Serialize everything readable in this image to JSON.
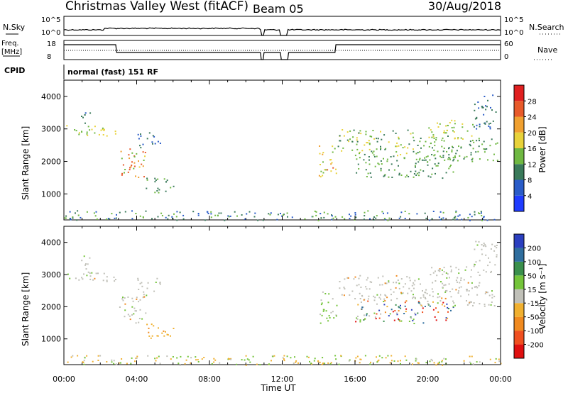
{
  "header": {
    "title": "Christmas Valley West (fitACF)",
    "beam": "Beam 05",
    "date": "30/Aug/2018"
  },
  "panels": {
    "nsky": {
      "label": "N.Sky",
      "y_top": "10^5",
      "y_bottom": "10^0",
      "right_top": "10^5",
      "right_bottom": "10^0",
      "right_label": "N.Search"
    },
    "freq": {
      "label_line1": "Freq.",
      "label_line2": "[MHz]",
      "y_top": "18",
      "y_bottom": "8",
      "right_top": "60",
      "right_bottom": "0",
      "right_label": "Nave"
    },
    "cpid": {
      "label": "CPID",
      "value": "normal (fast) 151 RF"
    }
  },
  "chart_data": [
    {
      "type": "heatmap",
      "name": "power",
      "ylabel": "Slant Range [km]",
      "yticks": [
        "1000",
        "2000",
        "3000",
        "4000"
      ],
      "ylim": [
        200,
        4500
      ],
      "xlim": [
        "00:00",
        "24:00"
      ],
      "colorbar": {
        "label": "Power [dB]",
        "ticks": [
          "4",
          "8",
          "12",
          "16",
          "20",
          "24",
          "28"
        ],
        "colors": [
          "#1f3cff",
          "#2a5cc8",
          "#3a7a5a",
          "#6fb842",
          "#e8d23a",
          "#f0a030",
          "#e85a2a",
          "#e02020"
        ]
      }
    },
    {
      "type": "heatmap",
      "name": "velocity",
      "ylabel": "Slant Range [km]",
      "yticks": [
        "1000",
        "2000",
        "3000",
        "4000"
      ],
      "ylim": [
        200,
        4500
      ],
      "xlim": [
        "00:00",
        "24:00"
      ],
      "xlabel": "Time UT",
      "xticks": [
        "00:00",
        "04:00",
        "08:00",
        "12:00",
        "16:00",
        "20:00",
        "00:00"
      ],
      "colorbar": {
        "label": "Velocity [m s⁻¹]",
        "ticks": [
          "200",
          "100",
          "50",
          "15",
          "-15",
          "-50",
          "-100",
          "-200"
        ],
        "colors": [
          "#2b3fbf",
          "#2f6e9e",
          "#3a8f4c",
          "#74c43a",
          "#c0c0b8",
          "#f0b030",
          "#f08a20",
          "#f05020",
          "#e01010"
        ]
      }
    }
  ],
  "scatter_regions": [
    {
      "t0": 0.0,
      "t1": 2.9,
      "r0": 2800,
      "r1": 3150,
      "pow": [
        12,
        20
      ],
      "vel": "gray"
    },
    {
      "t0": 0.9,
      "t1": 1.5,
      "r0": 3150,
      "r1": 3600,
      "pow": [
        6,
        12
      ],
      "vel": "gray"
    },
    {
      "t0": 3.0,
      "t1": 4.5,
      "r0": 1500,
      "r1": 2400,
      "pow": [
        14,
        28
      ],
      "vel": "gray"
    },
    {
      "t0": 4.0,
      "t1": 5.3,
      "r0": 2400,
      "r1": 2900,
      "pow": [
        6,
        12
      ],
      "vel": "gray"
    },
    {
      "t0": 4.5,
      "t1": 6.0,
      "r0": 1000,
      "r1": 1500,
      "pow": [
        8,
        14
      ],
      "vel": "neg"
    },
    {
      "t0": 14.0,
      "t1": 15.0,
      "r0": 1500,
      "r1": 2500,
      "pow": [
        14,
        26
      ],
      "vel": "green"
    },
    {
      "t0": 15.0,
      "t1": 19.5,
      "r0": 2200,
      "r1": 3000,
      "pow": [
        10,
        20
      ],
      "vel": "gray"
    },
    {
      "t0": 16.0,
      "t1": 21.5,
      "r0": 1500,
      "r1": 2200,
      "pow": [
        8,
        16
      ],
      "vel": "mixed"
    },
    {
      "t0": 19.5,
      "t1": 23.8,
      "r0": 2000,
      "r1": 2800,
      "pow": [
        10,
        16
      ],
      "vel": "gray"
    },
    {
      "t0": 20.0,
      "t1": 22.5,
      "r0": 2700,
      "r1": 3300,
      "pow": [
        12,
        20
      ],
      "vel": "gray"
    },
    {
      "t0": 22.5,
      "t1": 23.8,
      "r0": 3000,
      "r1": 4100,
      "pow": [
        6,
        12
      ],
      "vel": "gray"
    },
    {
      "t0": 0.0,
      "t1": 24.0,
      "r0": 200,
      "r1": 500,
      "pow": [
        4,
        16
      ],
      "vel": "ground"
    }
  ]
}
